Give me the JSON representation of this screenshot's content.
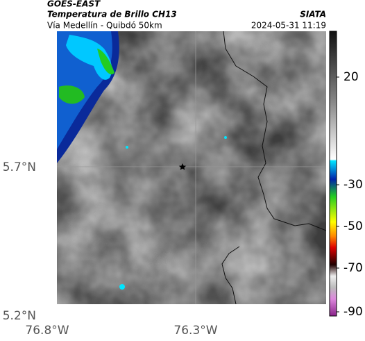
{
  "header": {
    "source": "GOES-EAST",
    "title": "Temperatura de Brillo CH13",
    "subtitle": "Vía Medellín - Quibdó 50km",
    "agency": "SIATA",
    "datetime": "2024-05-31 11:19"
  },
  "axes": {
    "lat_labels": [
      "5.7°N",
      "5.2°N"
    ],
    "lon_labels": [
      "76.8°W",
      "76.3°W"
    ]
  },
  "colorbar": {
    "labels": [
      "20",
      "-30",
      "-50",
      "-70",
      "-90"
    ]
  }
}
